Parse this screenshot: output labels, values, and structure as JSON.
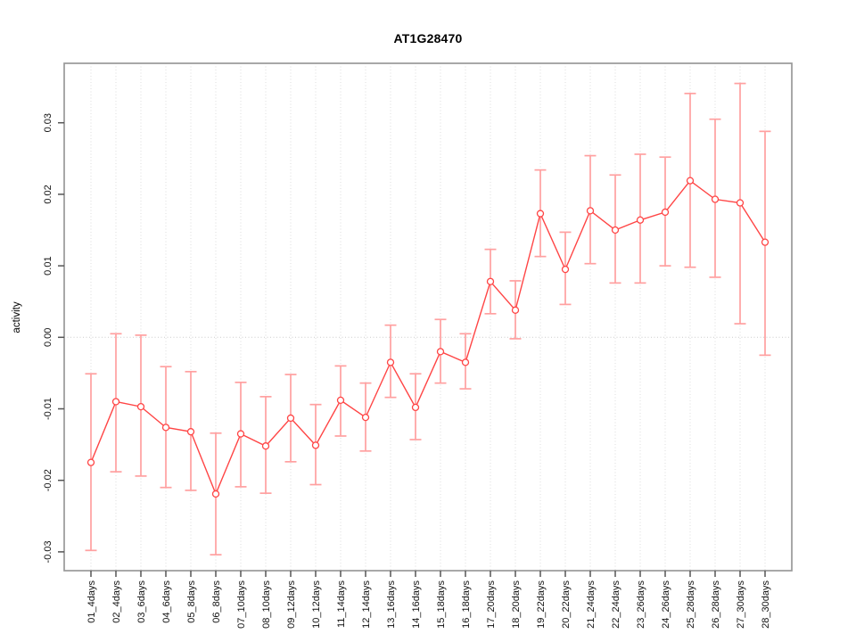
{
  "chart_data": {
    "type": "line",
    "title": "AT1G28470",
    "xlabel": "",
    "ylabel": "activity",
    "marker": "open-circle",
    "legend": {
      "visible": false
    },
    "grid": {
      "vertical_dotted": true,
      "zero_line_dotted": true,
      "horizontal": false
    },
    "ylim": [
      -0.0326,
      0.0383
    ],
    "categories": [
      "01_4days",
      "02_4days",
      "03_6days",
      "04_6days",
      "05_8days",
      "06_8days",
      "07_10days",
      "08_10days",
      "09_12days",
      "10_12days",
      "11_14days",
      "12_14days",
      "13_16days",
      "14_16days",
      "15_18days",
      "16_18days",
      "17_20days",
      "18_20days",
      "19_22days",
      "20_22days",
      "21_24days",
      "22_24days",
      "23_26days",
      "24_26days",
      "25_28days",
      "26_28days",
      "27_30days",
      "28_30days"
    ],
    "series": [
      {
        "name": "activity",
        "color": "#ff4545",
        "values": [
          -0.0175,
          -0.009,
          -0.0097,
          -0.0126,
          -0.0132,
          -0.0219,
          -0.0135,
          -0.0152,
          -0.0113,
          -0.0151,
          -0.0088,
          -0.0112,
          -0.0035,
          -0.0098,
          -0.002,
          -0.0035,
          0.0078,
          0.0038,
          0.0173,
          0.0095,
          0.0177,
          0.015,
          0.0164,
          0.0175,
          0.0219,
          0.0193,
          0.0188,
          0.0133
        ]
      }
    ],
    "error_bars": {
      "color": "#ffa0a0",
      "low": [
        -0.0298,
        -0.0188,
        -0.0194,
        -0.021,
        -0.0214,
        -0.0304,
        -0.0209,
        -0.0218,
        -0.0174,
        -0.0206,
        -0.0138,
        -0.0159,
        -0.0084,
        -0.0143,
        -0.0064,
        -0.0072,
        0.0033,
        -0.0002,
        0.0113,
        0.0046,
        0.0103,
        0.0076,
        0.0076,
        0.01,
        0.0098,
        0.0084,
        0.0019,
        -0.0025
      ],
      "high": [
        -0.0051,
        0.0005,
        0.0003,
        -0.0041,
        -0.0048,
        -0.0134,
        -0.0063,
        -0.0083,
        -0.0052,
        -0.0094,
        -0.004,
        -0.0064,
        0.0017,
        -0.0051,
        0.0025,
        0.0005,
        0.0123,
        0.0079,
        0.0234,
        0.0147,
        0.0254,
        0.0227,
        0.0256,
        0.0252,
        0.0341,
        0.0305,
        0.0355,
        0.0288
      ]
    },
    "y_ticks": {
      "values": [
        0.03,
        0.02,
        0.01,
        0.0,
        -0.01,
        -0.02,
        -0.03
      ],
      "labels": [
        "0.03",
        "0.02",
        "0.01",
        "0.00",
        "-0.01",
        "-0.02",
        "-0.03"
      ]
    },
    "colors": {
      "grid": "#dcdcdc",
      "zero_line": "#cccccc",
      "box_border": "#999999",
      "tick": "#555555",
      "tick_label": "#111111"
    }
  }
}
